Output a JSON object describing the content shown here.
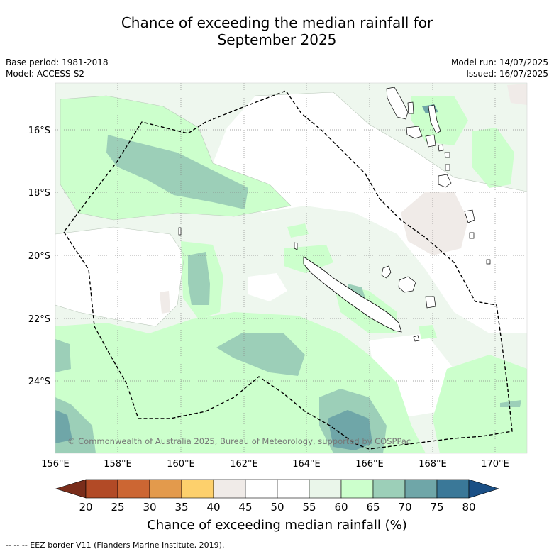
{
  "header": {
    "title_line1": "Chance of exceeding the median rainfall for",
    "title_line2": "September 2025",
    "base_period": "Base period: 1981-2018",
    "model": "Model: ACCESS-S2",
    "model_run": "Model run: 14/07/2025",
    "issued": "Issued: 16/07/2025"
  },
  "map": {
    "lat_labels": [
      "16°S",
      "18°S",
      "20°S",
      "22°S",
      "24°S"
    ],
    "lon_labels": [
      "156°E",
      "158°E",
      "160°E",
      "162°E",
      "164°E",
      "166°E",
      "168°E",
      "170°E"
    ],
    "copyright": "© Commonwealth of Australia 2025, Bureau of Meteorology, supported by COSPPac"
  },
  "colorbar": {
    "ticks": [
      "20",
      "25",
      "30",
      "35",
      "40",
      "45",
      "50",
      "55",
      "60",
      "65",
      "70",
      "75",
      "80"
    ],
    "colors": [
      "#7a2d1b",
      "#b24a26",
      "#cc6633",
      "#e39a4c",
      "#fdd06c",
      "#f0ebe8",
      "#ffffff",
      "#ffffff",
      "#eaf6ea",
      "#ccffcc",
      "#9ccfb8",
      "#6fa6a8",
      "#3a7898",
      "#1a4f85"
    ],
    "label": "Chance of exceeding median rainfall (%)"
  },
  "footnote": "-- -- -- EEZ border V11 (Flanders Marine Institute, 2019)."
}
